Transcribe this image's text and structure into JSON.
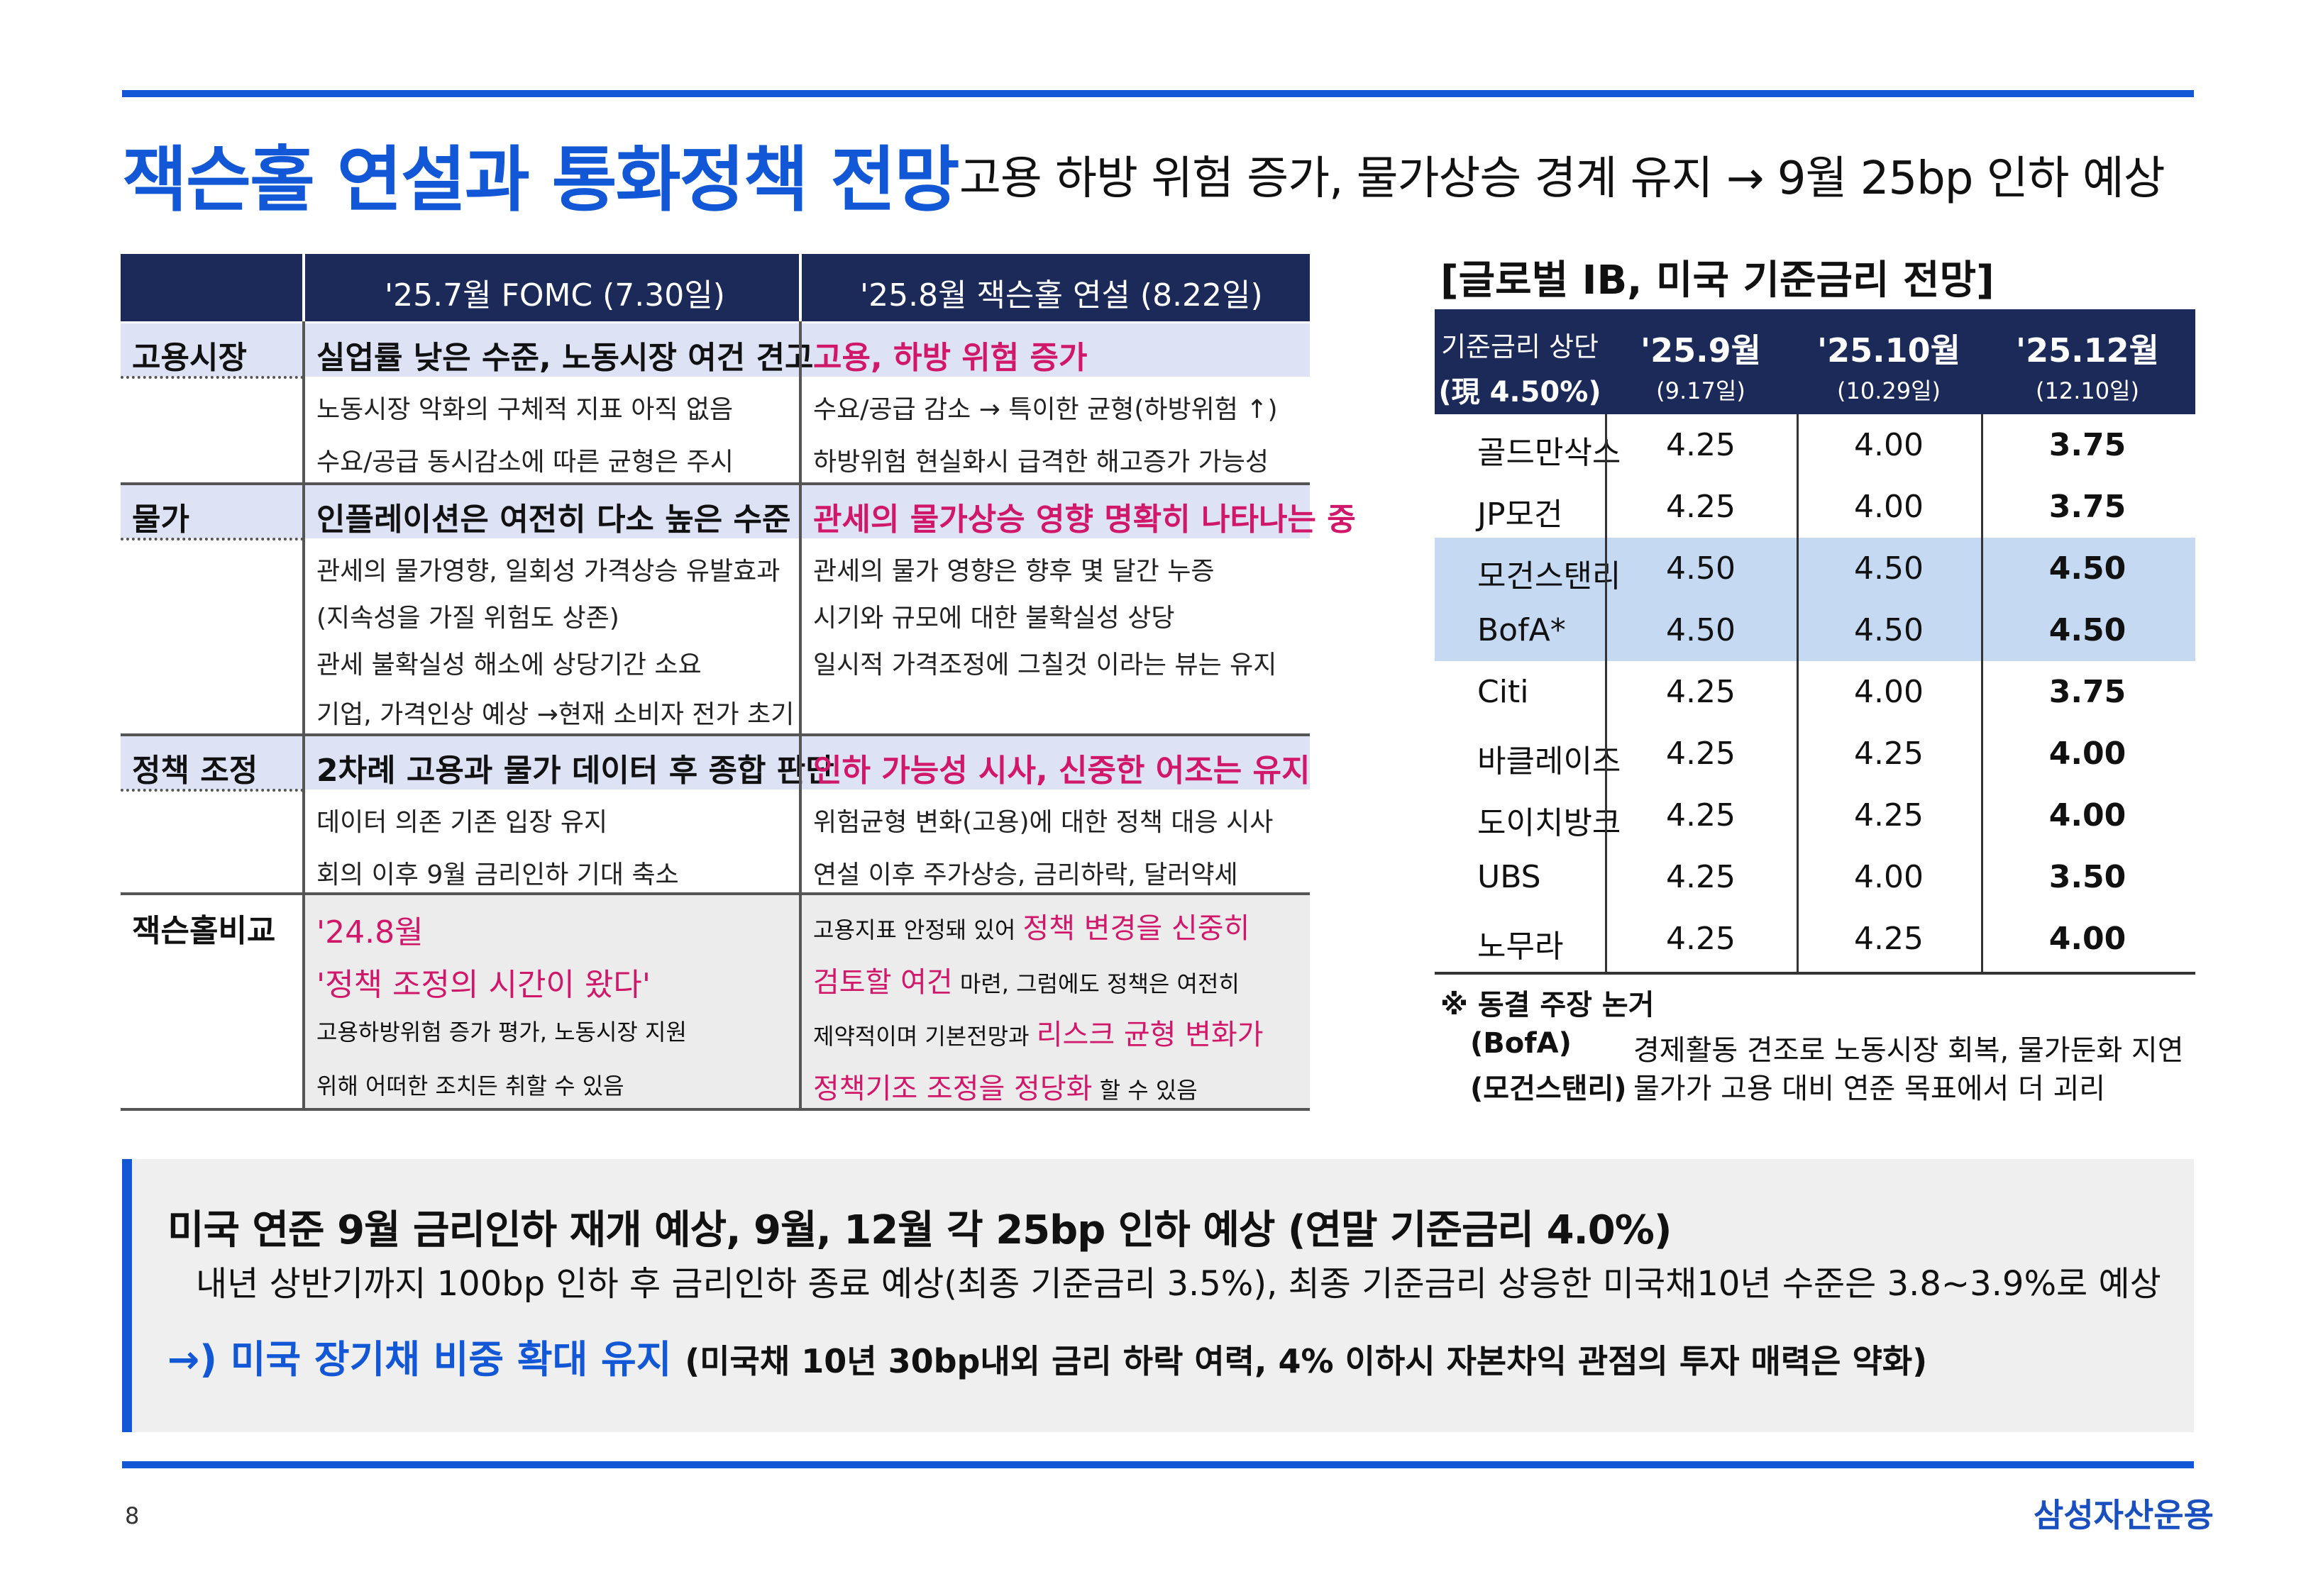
{
  "title": "잭슨홀 연설과 통화정책 전망",
  "subtitle": "고용 하방 위험 증가, 물가상승 경계 유지 → 9월 25bp 인하 예상",
  "compare": {
    "col1_header": "'25.7월 FOMC (7.30일)",
    "col2_header": "'25.8월 잭슨홀 연설 (8.22일)",
    "sections": [
      {
        "label": "고용시장",
        "c1_head": "실업률 낮은 수준, 노동시장 여건 견고",
        "c2_head": "고용, 하방 위험 증가",
        "c1_lines": [
          "노동시장 악화의 구체적 지표 아직 없음",
          "수요/공급 동시감소에 따른 균형은 주시"
        ],
        "c2_lines": [
          "수요/공급 감소 → 특이한 균형(하방위험 ↑)",
          "하방위험 현실화시 급격한 해고증가 가능성"
        ]
      },
      {
        "label": "물가",
        "c1_head": "인플레이션은 여전히 다소 높은 수준",
        "c2_head": "관세의 물가상승 영향 명확히 나타나는 중",
        "c1_lines": [
          "관세의 물가영향, 일회성 가격상승 유발효과",
          "(지속성을 가질 위험도 상존)",
          "관세 불확실성 해소에 상당기간 소요",
          "기업, 가격인상 예상 →현재 소비자 전가 초기"
        ],
        "c2_lines": [
          "관세의 물가 영향은 향후 몇 달간 누증",
          "시기와 규모에 대한 불확실성 상당",
          "일시적 가격조정에 그칠것 이라는 뷰는 유지"
        ]
      },
      {
        "label": "정책 조정",
        "c1_head": "2차례 고용과 물가 데이터 후 종합 판단",
        "c2_head": "인하 가능성 시사, 신중한 어조는 유지",
        "c1_lines": [
          "데이터 의존 기존 입장 유지",
          "회의 이후 9월 금리인하 기대 축소"
        ],
        "c2_lines": [
          "위험균형 변화(고용)에 대한 정책 대응 시사",
          "연설 이후 주가상승, 금리하락, 달러약세"
        ]
      }
    ],
    "jh": {
      "label": "잭슨홀비교",
      "c1_l1": "'24.8월",
      "c1_l2": "'정책 조정의 시간이 왔다'",
      "c1_l3": "고용하방위험 증가 평가, 노동시장 지원",
      "c1_l4": "위해 어떠한 조치든 취할 수 있음",
      "c2_l1a": "고용지표 안정돼 있어 ",
      "c2_l1b": "정책 변경을 신중히",
      "c2_l2a": "검토할 여건",
      "c2_l2b": " 마련, 그럼에도 정책은 여전히",
      "c2_l3a": "제약적이며 기본전망과 ",
      "c2_l3b": "리스크 균형 변화가",
      "c2_l4a": "정책기조 조정을 정당화",
      "c2_l4b": " 할 수 있음"
    }
  },
  "ib": {
    "title": "[글로벌 IB, 미국 기준금리 전망]",
    "head_label1": "기준금리 상단",
    "head_label2": "(現 4.50%)",
    "cols": [
      {
        "label": "'25.9월",
        "date": "(9.17일)"
      },
      {
        "label": "'25.10월",
        "date": "(10.29일)"
      },
      {
        "label": "'25.12월",
        "date": "(12.10일)"
      }
    ],
    "rows": [
      {
        "name": "골드만삭스",
        "v": [
          "4.25",
          "4.00",
          "3.75"
        ],
        "hl": false
      },
      {
        "name": "JP모건",
        "v": [
          "4.25",
          "4.00",
          "3.75"
        ],
        "hl": false
      },
      {
        "name": "모건스탠리",
        "v": [
          "4.50",
          "4.50",
          "4.50"
        ],
        "hl": true
      },
      {
        "name": "BofA*",
        "v": [
          "4.50",
          "4.50",
          "4.50"
        ],
        "hl": true
      },
      {
        "name": "Citi",
        "v": [
          "4.25",
          "4.00",
          "3.75"
        ],
        "hl": false
      },
      {
        "name": "바클레이즈",
        "v": [
          "4.25",
          "4.25",
          "4.00"
        ],
        "hl": false
      },
      {
        "name": "도이치방크",
        "v": [
          "4.25",
          "4.25",
          "4.00"
        ],
        "hl": false
      },
      {
        "name": "UBS",
        "v": [
          "4.25",
          "4.00",
          "3.50"
        ],
        "hl": false
      },
      {
        "name": "노무라",
        "v": [
          "4.25",
          "4.25",
          "4.00"
        ],
        "hl": false
      }
    ],
    "note_title": "※ 동결 주장 논거",
    "notes": [
      {
        "who": "(BofA)",
        "text": "경제활동 견조로 노동시장 회복, 물가둔화 지연"
      },
      {
        "who": "(모건스탠리)",
        "text": "물가가 고용 대비 연준 목표에서 더 괴리"
      }
    ]
  },
  "summary": {
    "line1": "미국 연준 9월 금리인하 재개 예상, 9월, 12월 각 25bp 인하 예상 (연말 기준금리 4.0%)",
    "line2": "내년 상반기까지 100bp 인하 후 금리인하 종료 예상(최종 기준금리 3.5%), 최종 기준금리 상응한 미국채10년 수준은 3.8~3.9%로 예상",
    "line3_a": "→) 미국 장기채 비중 확대 유지 ",
    "line3_b": "(미국채 10년 30bp내외 금리 하락 여력,  4% 이하시 자본차익 관점의 투자 매력은 약화)"
  },
  "page_number": "8",
  "logo": "삼성자산운용",
  "colors": {
    "accent": "#1257d6",
    "navy": "#1b2a59",
    "pink": "#d1176a",
    "highlight": "#c5daf2"
  }
}
